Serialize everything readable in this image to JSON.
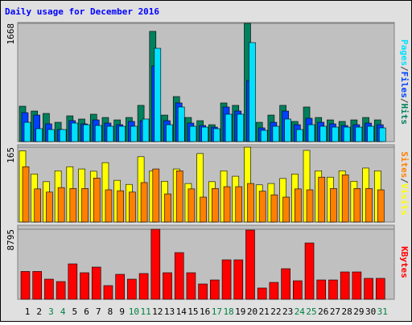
{
  "chart_data": [
    {
      "type": "bar",
      "title": "Daily usage for December 2016",
      "title_color": "#0000ff",
      "legend_separator": "/",
      "ylim": [
        0,
        1668
      ],
      "yticks": [
        1668
      ],
      "grid": true,
      "series": [
        {
          "name": "Hits",
          "color": "#00805c",
          "values": [
            499,
            431,
            397,
            272,
            363,
            318,
            386,
            340,
            306,
            340,
            511,
            1555,
            374,
            635,
            340,
            295,
            238,
            545,
            511,
            1668,
            272,
            374,
            511,
            284,
            488,
            340,
            306,
            284,
            306,
            340,
            306
          ]
        },
        {
          "name": "Files",
          "color": "#0040ff",
          "values": [
            408,
            374,
            250,
            170,
            295,
            250,
            306,
            261,
            238,
            284,
            295,
            1067,
            295,
            545,
            261,
            227,
            204,
            488,
            431,
            862,
            193,
            272,
            431,
            238,
            329,
            272,
            250,
            227,
            238,
            261,
            238
          ]
        },
        {
          "name": "Pages",
          "color": "#00e0ff",
          "values": [
            272,
            182,
            170,
            170,
            261,
            238,
            227,
            216,
            216,
            216,
            318,
            1316,
            238,
            488,
            216,
            204,
            182,
            386,
            386,
            1396,
            159,
            216,
            318,
            170,
            238,
            216,
            204,
            204,
            204,
            216,
            193
          ]
        }
      ]
    },
    {
      "type": "bar",
      "legend_separator": "/",
      "ylim": [
        0,
        165
      ],
      "yticks": [
        165
      ],
      "grid": true,
      "series": [
        {
          "name": "Visits",
          "color": "#ffff00",
          "values": [
            157,
            106,
            89,
            113,
            122,
            117,
            112,
            131,
            92,
            83,
            144,
            113,
            90,
            117,
            85,
            151,
            89,
            113,
            101,
            165,
            82,
            85,
            96,
            106,
            158,
            113,
            99,
            113,
            90,
            119,
            113
          ]
        },
        {
          "name": "Sites",
          "color": "#ff8000",
          "values": [
            122,
            73,
            66,
            76,
            74,
            74,
            97,
            71,
            69,
            66,
            87,
            117,
            62,
            113,
            73,
            55,
            74,
            78,
            78,
            85,
            68,
            60,
            55,
            73,
            71,
            99,
            74,
            104,
            74,
            74,
            71
          ]
        }
      ]
    },
    {
      "type": "bar",
      "ylim": [
        0,
        8795
      ],
      "yticks": [
        8795
      ],
      "grid": true,
      "categories": [
        "1",
        "2",
        "3",
        "4",
        "5",
        "6",
        "7",
        "8",
        "9",
        "10",
        "11",
        "12",
        "13",
        "14",
        "15",
        "16",
        "17",
        "18",
        "19",
        "20",
        "21",
        "22",
        "23",
        "24",
        "25",
        "26",
        "27",
        "28",
        "29",
        "30",
        "31"
      ],
      "category_colors": [
        "#000000",
        "#000000",
        "#008040",
        "#008040",
        "#000000",
        "#000000",
        "#000000",
        "#000000",
        "#000000",
        "#008040",
        "#008040",
        "#000000",
        "#000000",
        "#000000",
        "#000000",
        "#000000",
        "#008040",
        "#008040",
        "#000000",
        "#000000",
        "#000000",
        "#000000",
        "#000000",
        "#008040",
        "#008040",
        "#000000",
        "#000000",
        "#000000",
        "#000000",
        "#000000",
        "#008040"
      ],
      "series": [
        {
          "name": "KBytes",
          "color": "#ff0000",
          "values": [
            3495,
            3495,
            2527,
            2224,
            4447,
            3336,
            4043,
            1719,
            3134,
            2527,
            3235,
            8795,
            3336,
            5863,
            3336,
            1921,
            2426,
            4954,
            4954,
            8694,
            1416,
            2123,
            3841,
            2325,
            7076,
            2426,
            2426,
            3437,
            3437,
            2628,
            2628
          ]
        }
      ]
    }
  ]
}
